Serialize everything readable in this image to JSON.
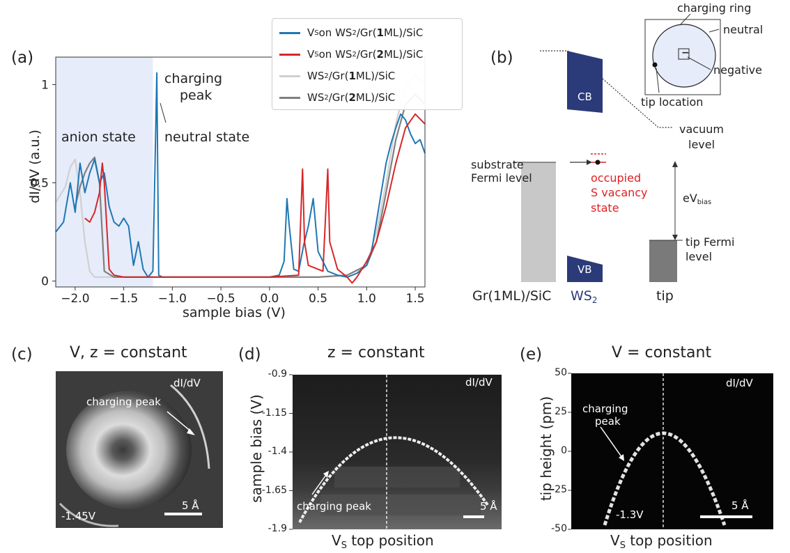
{
  "panel_a": {
    "label": "(a)",
    "xlabel": "sample bias (V)",
    "ylabel": "dI/dV (a.u.)",
    "xticks": [
      "−2.0",
      "−1.5",
      "−1.0",
      "−0.5",
      "0.0",
      "0.5",
      "1.0",
      "1.5"
    ],
    "yticks": [
      "0",
      "0.5",
      "1"
    ],
    "anion_label": "anion state",
    "neutral_label": "neutral state",
    "charging_label_1": "charging",
    "charging_label_2": "peak",
    "legend": [
      {
        "pre": "V",
        "sub": "S",
        "mid": " on WS",
        "sub2": "2",
        "post1": "/Gr(",
        "bold": "1",
        "post2": "ML)/SiC",
        "color": "#1f77b4"
      },
      {
        "pre": "V",
        "sub": "S",
        "mid": " on WS",
        "sub2": "2",
        "post1": "/Gr(",
        "bold": "2",
        "post2": "ML)/SiC",
        "color": "#d62728"
      },
      {
        "pre": "",
        "sub": "",
        "mid": "WS",
        "sub2": "2",
        "post1": "/Gr(",
        "bold": "1",
        "post2": "ML)/SiC",
        "color": "#d0d0d0"
      },
      {
        "pre": "",
        "sub": "",
        "mid": "WS",
        "sub2": "2",
        "post1": "/Gr(",
        "bold": "2",
        "post2": "ML)/SiC",
        "color": "#808080"
      }
    ]
  },
  "panel_b": {
    "label": "(b)",
    "cb": "CB",
    "vb": "VB",
    "substrate_fermi_1": "substrate",
    "substrate_fermi_2": "Fermi level",
    "occupied_1": "occupied",
    "occupied_2": "S vacancy",
    "occupied_3": "state",
    "vacuum_1": "vacuum",
    "vacuum_2": "level",
    "ebias_main": "eV",
    "ebias_sub": "bias",
    "tip_fermi_1": "tip Fermi",
    "tip_fermi_2": "level",
    "bottom_left": "Gr(1ML)/SiC",
    "bottom_ws": "WS",
    "bottom_ws_sub": "2",
    "bottom_tip": "tip",
    "inset_charging_ring": "charging ring",
    "inset_neutral": "neutral",
    "inset_negative": "negative",
    "inset_tip_location": "tip location",
    "inset_symbol": "−",
    "colors": {
      "band": "#2b3a78",
      "red": "#e02020",
      "substrate": "#c8c8c8",
      "tip": "#7a7a7a"
    }
  },
  "panel_c": {
    "label": "(c)",
    "title": "V, z = constant",
    "corner": "dI/dV",
    "charging_peak": "charging peak",
    "bias": "-1.45V",
    "scale": "5 Å"
  },
  "panel_d": {
    "label": "(d)",
    "title": "z = constant",
    "corner": "dI/dV",
    "ylabel": "sample bias (V)",
    "yticks": [
      "-0.9",
      "-1.15",
      "-1.4",
      "-1.65",
      "-1.9"
    ],
    "xlabel_pre": "V",
    "xlabel_sub": "S",
    "xlabel_post": " top position",
    "charging_peak": "charging peak",
    "scale": "5 Å"
  },
  "panel_e": {
    "label": "(e)",
    "title": "V = constant",
    "corner": "dI/dV",
    "ylabel": "tip height (pm)",
    "yticks": [
      "50",
      "25",
      "0",
      "-25",
      "-50"
    ],
    "xlabel_pre": "V",
    "xlabel_sub": "S",
    "xlabel_post": " top position",
    "charging_1": "charging",
    "charging_2": "peak",
    "bias": "-1.3V",
    "scale": "5 Å"
  },
  "chart_data": [
    {
      "type": "line",
      "xlabel": "sample bias (V)",
      "ylabel": "dI/dV (a.u.)",
      "xlim": [
        -2.2,
        1.6
      ],
      "ylim": [
        -0.03,
        1.14
      ],
      "shaded_region_x": [
        -2.2,
        -1.2
      ],
      "series": [
        {
          "name": "VS on WS2/Gr(1ML)/SiC",
          "color": "#1f77b4",
          "x": [
            -2.2,
            -2.12,
            -2.05,
            -2.0,
            -1.95,
            -1.9,
            -1.85,
            -1.8,
            -1.75,
            -1.7,
            -1.65,
            -1.6,
            -1.55,
            -1.5,
            -1.45,
            -1.4,
            -1.35,
            -1.3,
            -1.25,
            -1.2,
            -1.18,
            -1.16,
            -1.14,
            -1.1,
            -1.0,
            -0.5,
            0.0,
            0.1,
            0.15,
            0.18,
            0.2,
            0.25,
            0.3,
            0.35,
            0.4,
            0.45,
            0.5,
            0.6,
            0.7,
            0.8,
            0.9,
            1.0,
            1.05,
            1.1,
            1.15,
            1.2,
            1.25,
            1.3,
            1.35,
            1.4,
            1.45,
            1.5,
            1.55,
            1.6
          ],
          "y": [
            0.25,
            0.3,
            0.5,
            0.35,
            0.6,
            0.45,
            0.55,
            0.62,
            0.5,
            0.55,
            0.38,
            0.3,
            0.28,
            0.32,
            0.28,
            0.08,
            0.2,
            0.06,
            0.02,
            0.05,
            0.55,
            1.06,
            0.03,
            0.02,
            0.02,
            0.02,
            0.02,
            0.03,
            0.1,
            0.42,
            0.3,
            0.06,
            0.05,
            0.18,
            0.28,
            0.42,
            0.15,
            0.05,
            0.03,
            0.02,
            0.04,
            0.08,
            0.15,
            0.3,
            0.45,
            0.6,
            0.7,
            0.78,
            0.85,
            0.82,
            0.75,
            0.7,
            0.72,
            0.65
          ]
        },
        {
          "name": "VS on WS2/Gr(2ML)/SiC",
          "color": "#d62728",
          "x": [
            -1.9,
            -1.85,
            -1.8,
            -1.75,
            -1.72,
            -1.7,
            -1.65,
            -1.6,
            -1.5,
            -1.0,
            -0.5,
            0.0,
            0.3,
            0.34,
            0.36,
            0.4,
            0.55,
            0.6,
            0.62,
            0.7,
            0.8,
            0.85,
            0.9,
            1.0,
            1.1,
            1.2,
            1.3,
            1.4,
            1.5,
            1.6
          ],
          "y": [
            0.32,
            0.3,
            0.35,
            0.45,
            0.6,
            0.5,
            0.06,
            0.03,
            0.02,
            0.02,
            0.02,
            0.02,
            0.03,
            0.57,
            0.2,
            0.08,
            0.05,
            0.57,
            0.2,
            0.06,
            0.02,
            -0.01,
            0.02,
            0.1,
            0.2,
            0.38,
            0.6,
            0.78,
            0.85,
            0.8
          ]
        },
        {
          "name": "WS2/Gr(1ML)/SiC",
          "color": "#d0d0d0",
          "x": [
            -2.2,
            -2.1,
            -2.05,
            -2.0,
            -1.95,
            -1.9,
            -1.85,
            -1.8,
            -1.7,
            -1.5,
            -1.0,
            0.0,
            0.5,
            0.8,
            1.0,
            1.1,
            1.2,
            1.3,
            1.4,
            1.5,
            1.6
          ],
          "y": [
            0.4,
            0.48,
            0.58,
            0.62,
            0.45,
            0.2,
            0.05,
            0.02,
            0.02,
            0.02,
            0.02,
            0.02,
            0.02,
            0.03,
            0.08,
            0.25,
            0.5,
            0.8,
            1.0,
            1.05,
            1.0
          ]
        },
        {
          "name": "WS2/Gr(2ML)/SiC",
          "color": "#808080",
          "x": [
            -2.0,
            -1.95,
            -1.9,
            -1.85,
            -1.8,
            -1.75,
            -1.7,
            -1.6,
            -1.0,
            0.0,
            0.5,
            0.8,
            1.0,
            1.1,
            1.2,
            1.3,
            1.4,
            1.5,
            1.6
          ],
          "y": [
            0.38,
            0.48,
            0.55,
            0.6,
            0.63,
            0.5,
            0.05,
            0.02,
            0.02,
            0.02,
            0.02,
            0.03,
            0.08,
            0.2,
            0.45,
            0.72,
            0.9,
            0.95,
            0.9
          ]
        }
      ]
    }
  ]
}
